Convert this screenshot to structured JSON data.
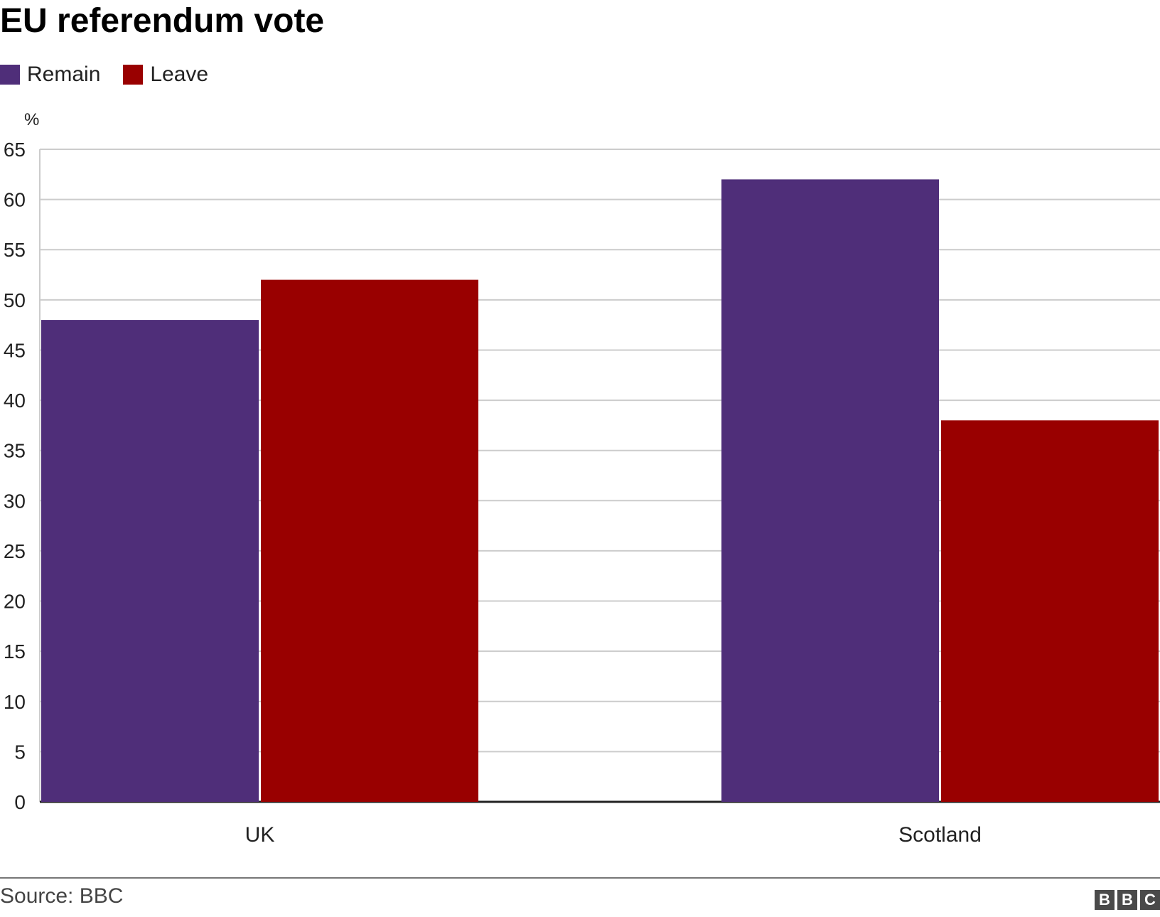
{
  "chart_data": {
    "type": "bar",
    "title": "EU referendum vote",
    "ylabel": "%",
    "xlabel": "",
    "categories": [
      "UK",
      "Scotland"
    ],
    "series": [
      {
        "name": "Remain",
        "color": "#4f2e79",
        "values": [
          48,
          62
        ]
      },
      {
        "name": "Leave",
        "color": "#990000",
        "values": [
          52,
          38
        ]
      }
    ],
    "ylim": [
      0,
      65
    ],
    "yticks": [
      0,
      5,
      10,
      15,
      20,
      25,
      30,
      35,
      40,
      45,
      50,
      55,
      60,
      65
    ],
    "grid": true,
    "legend_position": "top-left"
  },
  "footer": {
    "source": "Source: BBC",
    "logo_letters": [
      "B",
      "B",
      "C"
    ]
  }
}
